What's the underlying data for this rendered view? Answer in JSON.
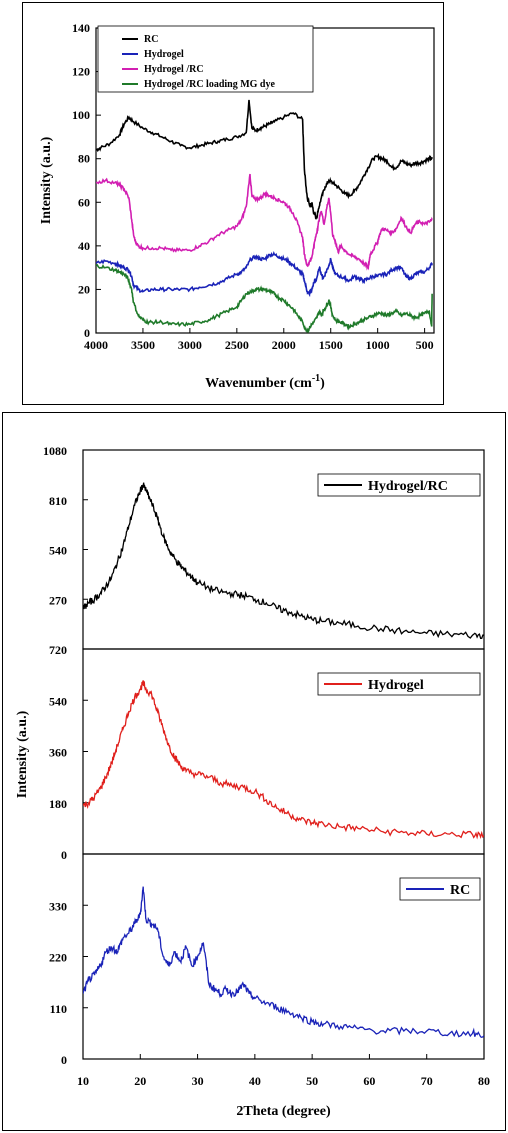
{
  "chart_data": [
    {
      "type": "line",
      "xlabel": "Wavenumber (cm",
      "xlabel_sup": "-1",
      "xlabel_end": ")",
      "ylabel": "Intensity (a.u.)",
      "xlim": [
        4000,
        400
      ],
      "x_reversed": true,
      "ylim": [
        0,
        140
      ],
      "x_ticks": [
        "4000",
        "3500",
        "3000",
        "2500",
        "2000",
        "1500",
        "1000",
        "500"
      ],
      "y_ticks": [
        "0",
        "20",
        "40",
        "60",
        "80",
        "100",
        "120",
        "140"
      ],
      "legend_position": "top-left",
      "series": [
        {
          "name": "RC",
          "color": "#000000",
          "x": [
            4000,
            3950,
            3850,
            3750,
            3700,
            3650,
            3600,
            3500,
            3400,
            3300,
            3200,
            3100,
            3000,
            2900,
            2800,
            2700,
            2600,
            2500,
            2400,
            2370,
            2340,
            2300,
            2250,
            2200,
            2150,
            2100,
            2000,
            1900,
            1800,
            1780,
            1750,
            1720,
            1700,
            1680,
            1650,
            1630,
            1600,
            1560,
            1520,
            1480,
            1450,
            1400,
            1350,
            1300,
            1250,
            1200,
            1150,
            1100,
            1050,
            1000,
            950,
            900,
            850,
            800,
            750,
            700,
            650,
            600,
            550,
            500,
            450,
            420
          ],
          "y": [
            84,
            85,
            87,
            91,
            96,
            99,
            97,
            94,
            92,
            90,
            88,
            86,
            85,
            86,
            87,
            88,
            89,
            90,
            92,
            107,
            94,
            93,
            94,
            95,
            96,
            97,
            99,
            101,
            98,
            75,
            62,
            58,
            60,
            55,
            53,
            57,
            62,
            67,
            70,
            69,
            68,
            66,
            64,
            63,
            65,
            68,
            72,
            76,
            80,
            81,
            80,
            79,
            76,
            76,
            79,
            78,
            77,
            78,
            78,
            79,
            80,
            80
          ]
        },
        {
          "name": "Hydrogel",
          "color": "#1a23b8",
          "x": [
            4000,
            3900,
            3800,
            3750,
            3700,
            3650,
            3620,
            3600,
            3550,
            3500,
            3400,
            3300,
            3200,
            3100,
            3000,
            2900,
            2800,
            2700,
            2600,
            2500,
            2450,
            2400,
            2350,
            2300,
            2250,
            2200,
            2150,
            2100,
            2050,
            2000,
            1950,
            1900,
            1850,
            1800,
            1780,
            1750,
            1730,
            1700,
            1680,
            1650,
            1620,
            1600,
            1580,
            1550,
            1520,
            1500,
            1480,
            1450,
            1400,
            1350,
            1300,
            1250,
            1200,
            1150,
            1100,
            1050,
            1000,
            950,
            900,
            850,
            800,
            750,
            700,
            650,
            600,
            550,
            500,
            450,
            420
          ],
          "y": [
            32,
            33,
            32,
            31,
            30,
            29,
            26,
            22,
            20,
            19,
            20,
            20,
            20,
            20,
            20,
            21,
            22,
            23,
            25,
            27,
            28,
            30,
            34,
            35,
            34,
            34,
            36,
            36,
            35,
            34,
            33,
            31,
            29,
            27,
            24,
            19,
            18,
            20,
            23,
            25,
            30,
            27,
            25,
            28,
            31,
            34,
            30,
            27,
            26,
            25,
            24,
            26,
            25,
            24,
            25,
            26,
            26,
            27,
            27,
            29,
            30,
            30,
            26,
            25,
            27,
            28,
            28,
            30,
            32
          ]
        },
        {
          "name": "Hydrogel /RC",
          "color": "#d21fb2",
          "x": [
            4000,
            3900,
            3800,
            3750,
            3700,
            3650,
            3620,
            3600,
            3580,
            3550,
            3500,
            3400,
            3300,
            3200,
            3100,
            3000,
            2900,
            2800,
            2700,
            2600,
            2500,
            2450,
            2400,
            2360,
            2340,
            2300,
            2250,
            2200,
            2150,
            2100,
            2050,
            2000,
            1950,
            1900,
            1850,
            1800,
            1780,
            1750,
            1730,
            1700,
            1680,
            1660,
            1640,
            1620,
            1600,
            1570,
            1540,
            1520,
            1500,
            1480,
            1450,
            1420,
            1400,
            1350,
            1300,
            1250,
            1200,
            1150,
            1100,
            1080,
            1050,
            1000,
            980,
            950,
            900,
            850,
            800,
            750,
            700,
            650,
            600,
            550,
            500,
            450,
            420
          ],
          "y": [
            69,
            70,
            69,
            68,
            66,
            62,
            52,
            45,
            42,
            40,
            39,
            39,
            39,
            38,
            38,
            38,
            40,
            42,
            45,
            47,
            49,
            52,
            58,
            73,
            63,
            61,
            62,
            64,
            63,
            62,
            61,
            60,
            58,
            55,
            50,
            44,
            36,
            31,
            32,
            35,
            40,
            44,
            48,
            53,
            56,
            50,
            58,
            62,
            55,
            45,
            42,
            37,
            40,
            38,
            36,
            35,
            34,
            32,
            30,
            36,
            38,
            42,
            45,
            48,
            47,
            46,
            48,
            53,
            49,
            46,
            50,
            51,
            50,
            51,
            52
          ]
        },
        {
          "name": "Hydrogel /RC loading MG dye",
          "color": "#1f7a2a",
          "x": [
            4000,
            3900,
            3800,
            3750,
            3700,
            3660,
            3620,
            3600,
            3550,
            3500,
            3450,
            3400,
            3300,
            3200,
            3100,
            3000,
            2900,
            2800,
            2700,
            2600,
            2500,
            2450,
            2400,
            2350,
            2300,
            2250,
            2200,
            2150,
            2100,
            2050,
            2000,
            1950,
            1900,
            1850,
            1800,
            1770,
            1750,
            1730,
            1700,
            1680,
            1650,
            1620,
            1600,
            1580,
            1550,
            1520,
            1500,
            1480,
            1450,
            1400,
            1350,
            1300,
            1250,
            1200,
            1150,
            1100,
            1050,
            1000,
            950,
            900,
            850,
            800,
            750,
            700,
            650,
            600,
            550,
            500,
            450,
            425,
            420
          ],
          "y": [
            31,
            30,
            29,
            28,
            27,
            25,
            20,
            14,
            8,
            6,
            5,
            5,
            5,
            4,
            4,
            4,
            5,
            6,
            8,
            10,
            12,
            15,
            18,
            19,
            20,
            20,
            20,
            19,
            18,
            16,
            15,
            13,
            11,
            8,
            5,
            2,
            1,
            2,
            4,
            5,
            7,
            10,
            8,
            10,
            12,
            15,
            12,
            8,
            6,
            5,
            4,
            3,
            4,
            5,
            6,
            7,
            8,
            9,
            9,
            8,
            9,
            10,
            8,
            9,
            8,
            7,
            8,
            9,
            10,
            3,
            18
          ]
        }
      ]
    },
    {
      "type": "line",
      "xlabel": "2Theta (degree)",
      "ylabel": "Intensity (a.u.)",
      "xlim": [
        10,
        80
      ],
      "x_ticks": [
        "10",
        "20",
        "30",
        "40",
        "50",
        "60",
        "70",
        "80"
      ],
      "legend_position": "top-right",
      "stacked_panels": true,
      "panels": [
        {
          "name": "Hydrogel/RC",
          "color": "#000000",
          "ylim": [
            0,
            1080
          ],
          "y_ticks": [
            "270",
            "540",
            "810",
            "1080"
          ],
          "x": [
            10,
            11,
            12,
            13,
            14,
            15,
            16,
            17,
            18,
            19,
            20,
            20.5,
            21,
            22,
            23,
            24,
            25,
            26,
            27,
            28,
            29,
            30,
            32,
            34,
            36,
            38,
            40,
            42,
            44,
            46,
            48,
            50,
            52,
            55,
            58,
            62,
            66,
            70,
            74,
            78,
            80
          ],
          "y": [
            220,
            250,
            270,
            300,
            340,
            390,
            470,
            560,
            670,
            780,
            860,
            890,
            860,
            790,
            710,
            610,
            540,
            490,
            450,
            420,
            390,
            360,
            330,
            310,
            300,
            290,
            270,
            250,
            220,
            200,
            180,
            160,
            150,
            140,
            125,
            110,
            95,
            85,
            80,
            75,
            75
          ]
        },
        {
          "name": "Hydrogel",
          "color": "#e0201c",
          "ylim": [
            0,
            720
          ],
          "y_ticks": [
            "0",
            "180",
            "360",
            "540",
            "720"
          ],
          "x": [
            10,
            11,
            12,
            13,
            14,
            15,
            16,
            17,
            18,
            19,
            20,
            20.5,
            21,
            22,
            23,
            24,
            25,
            26,
            27,
            28,
            30,
            32,
            34,
            36,
            38,
            40,
            42,
            44,
            46,
            48,
            50,
            52,
            55,
            58,
            62,
            66,
            70,
            74,
            78,
            80
          ],
          "y": [
            170,
            180,
            200,
            230,
            270,
            320,
            380,
            440,
            500,
            550,
            580,
            600,
            580,
            560,
            500,
            440,
            380,
            340,
            310,
            290,
            280,
            270,
            250,
            240,
            235,
            220,
            190,
            160,
            140,
            120,
            110,
            105,
            95,
            90,
            80,
            75,
            70,
            70,
            68,
            65
          ]
        },
        {
          "name": "RC",
          "color": "#1a23b8",
          "ylim": [
            0,
            440
          ],
          "y_ticks": [
            "0",
            "110",
            "220",
            "330"
          ],
          "x": [
            10,
            11,
            12,
            13,
            14,
            15,
            16,
            17,
            18,
            19,
            20,
            20.5,
            21,
            22,
            23,
            24,
            25,
            26,
            27,
            28,
            29,
            30,
            31,
            32,
            33,
            34,
            35,
            36,
            37,
            38,
            39,
            40,
            42,
            44,
            46,
            48,
            50,
            52,
            55,
            58,
            62,
            66,
            70,
            74,
            78,
            80
          ],
          "y": [
            140,
            170,
            180,
            200,
            230,
            240,
            230,
            260,
            270,
            290,
            310,
            370,
            300,
            290,
            280,
            220,
            200,
            230,
            210,
            240,
            200,
            220,
            250,
            160,
            150,
            140,
            150,
            140,
            145,
            160,
            140,
            130,
            120,
            110,
            100,
            90,
            80,
            75,
            70,
            65,
            60,
            60,
            60,
            55,
            55,
            50
          ]
        }
      ]
    }
  ]
}
